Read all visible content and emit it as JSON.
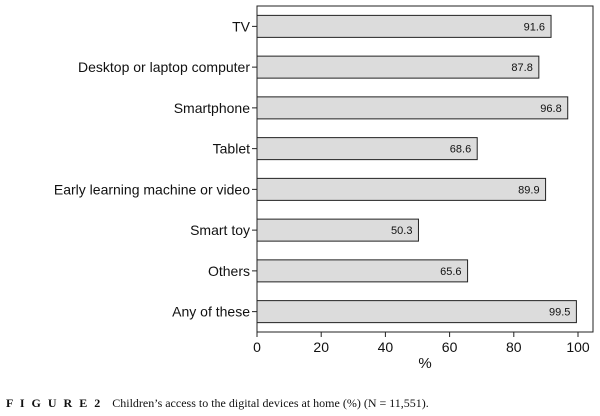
{
  "chart_data": {
    "type": "bar",
    "orientation": "horizontal",
    "categories": [
      "TV",
      "Desktop or laptop computer",
      "Smartphone",
      "Tablet",
      "Early learning machine or video",
      "Smart toy",
      "Others",
      "Any of these"
    ],
    "values": [
      91.6,
      87.8,
      96.8,
      68.6,
      89.9,
      50.3,
      65.6,
      99.5
    ],
    "value_labels": [
      "91.6",
      "87.8",
      "96.8",
      "68.6",
      "89.9",
      "50.3",
      "65.6",
      "99.5"
    ],
    "xlabel": "%",
    "ylabel": "",
    "xlim": [
      0,
      100
    ],
    "xticks": [
      "0",
      "20",
      "40",
      "60",
      "80",
      "100"
    ],
    "grid": false,
    "bar_color": "#dcdcdc",
    "bar_edge_color": "#222222"
  },
  "caption": {
    "figure_label": "F I G U R E 2",
    "text": "Children’s access to the digital devices at home (%) (N = 11,551)."
  }
}
